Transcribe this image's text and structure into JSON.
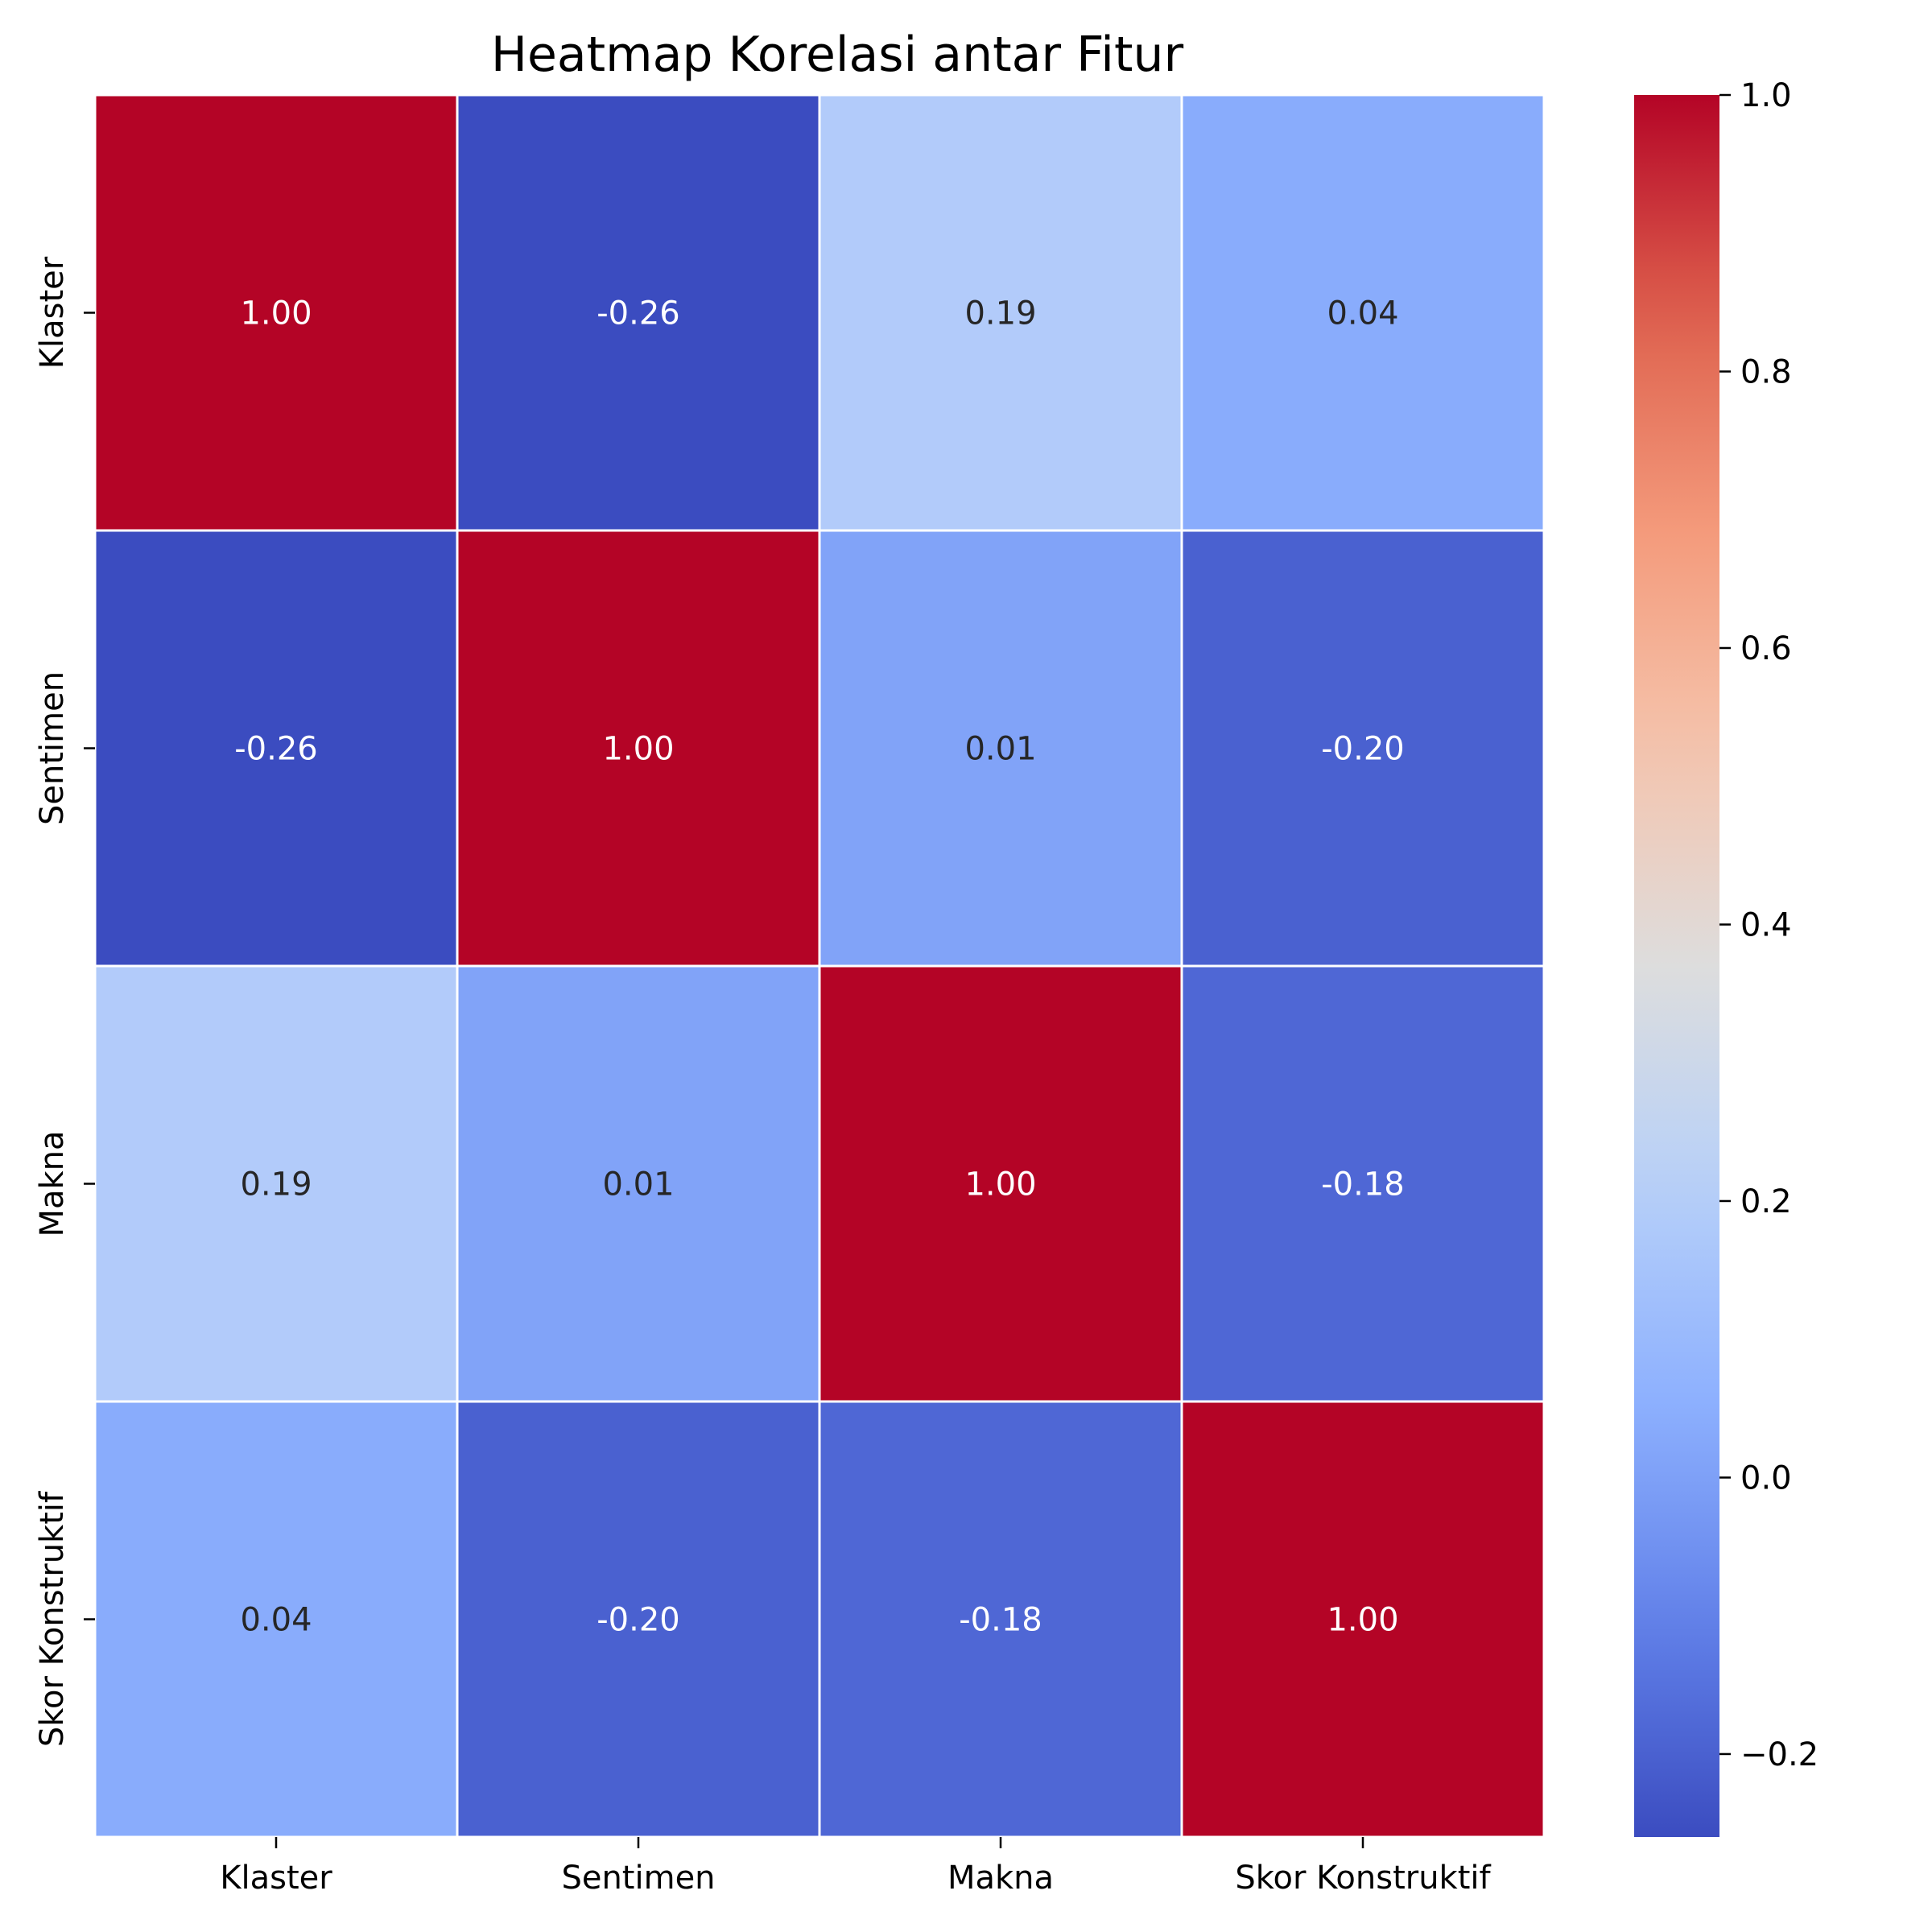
{
  "chart_data": {
    "type": "heatmap",
    "title": "Heatmap Korelasi antar Fitur",
    "x_labels": [
      "Klaster",
      "Sentimen",
      "Makna",
      "Skor Konstruktif"
    ],
    "y_labels": [
      "Klaster",
      "Sentimen",
      "Makna",
      "Skor Konstruktif"
    ],
    "matrix": [
      [
        1.0,
        -0.26,
        0.19,
        0.04
      ],
      [
        -0.26,
        1.0,
        0.01,
        -0.2
      ],
      [
        0.19,
        0.01,
        1.0,
        -0.18
      ],
      [
        0.04,
        -0.2,
        -0.18,
        1.0
      ]
    ],
    "annotations": [
      [
        "1.00",
        "-0.26",
        "0.19",
        "0.04"
      ],
      [
        "-0.26",
        "1.00",
        "0.01",
        "-0.20"
      ],
      [
        "0.19",
        "0.01",
        "1.00",
        "-0.18"
      ],
      [
        "0.04",
        "-0.20",
        "-0.18",
        "1.00"
      ]
    ],
    "colormap": "coolwarm",
    "colorbar": {
      "vmin": -0.26,
      "vmax": 1.0,
      "ticks": [
        -0.2,
        0.0,
        0.2,
        0.4,
        0.6,
        0.8,
        1.0
      ],
      "tick_labels": [
        "−0.2",
        "0.0",
        "0.2",
        "0.4",
        "0.6",
        "0.8",
        "1.0"
      ]
    },
    "cell_border_color": "#ffffff"
  }
}
